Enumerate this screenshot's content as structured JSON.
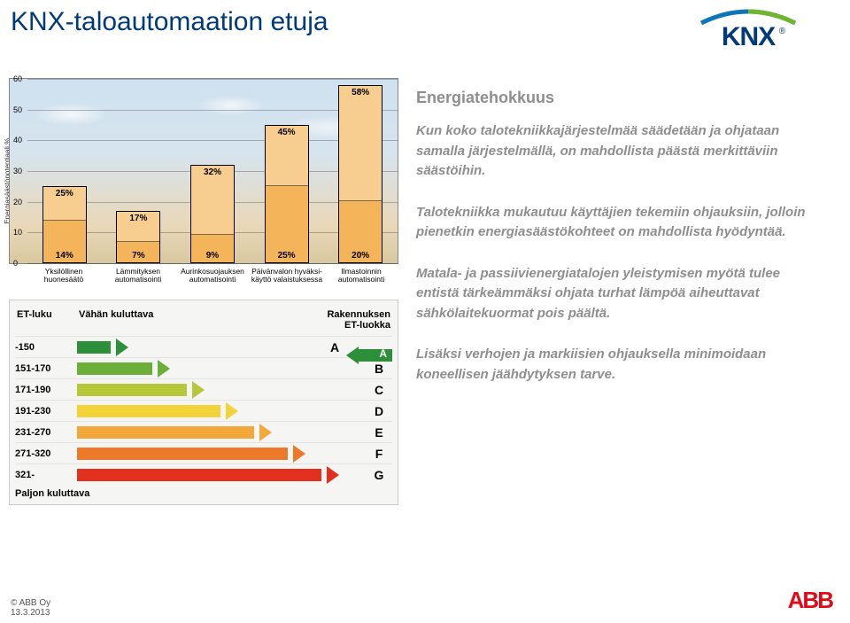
{
  "page": {
    "title": "KNX-taloautomaation etuja",
    "footer_company": "© ABB Oy",
    "footer_date": "13.3.2013",
    "abb_text": "ABB"
  },
  "knx_logo": {
    "text": "KNX",
    "arc_color_left": "#0b77b8",
    "arc_color_right": "#6fb62c"
  },
  "chart": {
    "type": "bar",
    "yaxis_label": "Energiasäästöpotentiaali %",
    "ylim_max": 60,
    "ytick_step": 10,
    "yticks": [
      0,
      10,
      20,
      30,
      40,
      50,
      60
    ],
    "bar_low_color": "#f3b45a",
    "bar_high_color": "#f7ce8f",
    "border_color": "#000000",
    "categories": [
      {
        "label_l1": "Yksilöllinen",
        "label_l2": "huonesäätö",
        "low": 14,
        "high": 25
      },
      {
        "label_l1": "Lämmityksen",
        "label_l2": "automatisointi",
        "low": 7,
        "high": 17
      },
      {
        "label_l1": "Aurinkosuojauksen",
        "label_l2": "automatisointi",
        "low": 9,
        "high": 32
      },
      {
        "label_l1": "Päivänvalon hyväksi-",
        "label_l2": "käyttö valaistuksessa",
        "low": 25,
        "high": 45
      },
      {
        "label_l1": "Ilmastoinnin",
        "label_l2": "automatisointi",
        "low": 20,
        "high": 58
      }
    ]
  },
  "et_table": {
    "head_c1": "ET-luku",
    "head_c2": "Vähän kuluttava",
    "head_c3_l1": "Rakennuksen",
    "head_c3_l2": "ET-luokka",
    "foot": "Paljon kuluttava",
    "current_class": "A",
    "rows": [
      {
        "range": "-150",
        "letter": "A",
        "color": "#2e8f3a",
        "width_pct": 18
      },
      {
        "range": "151-170",
        "letter": "B",
        "color": "#6cae3a",
        "width_pct": 30
      },
      {
        "range": "171-190",
        "letter": "C",
        "color": "#b6c73a",
        "width_pct": 42
      },
      {
        "range": "191-230",
        "letter": "D",
        "color": "#f2d43a",
        "width_pct": 54
      },
      {
        "range": "231-270",
        "letter": "E",
        "color": "#f2a83a",
        "width_pct": 66
      },
      {
        "range": "271-320",
        "letter": "F",
        "color": "#ed7a2a",
        "width_pct": 78
      },
      {
        "range": "321-",
        "letter": "G",
        "color": "#e1301e",
        "width_pct": 90
      }
    ]
  },
  "text": {
    "heading": "Energiatehokkuus",
    "p1": "Kun koko talotekniikkajärjestelmää säädetään ja ohjataan samalla järjestelmällä, on mahdollista päästä merkittäviin säästöihin.",
    "p2": "Talotekniikka mukautuu käyttäjien tekemiin ohjauksiin, jolloin pienetkin energiasäästökohteet on mahdollista hyödyntää.",
    "p3": "Matala- ja passiivienergiatalojen yleistymisen myötä tulee entistä tärkeämmäksi ohjata turhat lämpöä aiheuttavat sähkölaitekuormat pois päältä.",
    "p4": "Lisäksi verhojen ja markiisien ohjauksella minimoidaan koneellisen jäähdytyksen tarve."
  }
}
